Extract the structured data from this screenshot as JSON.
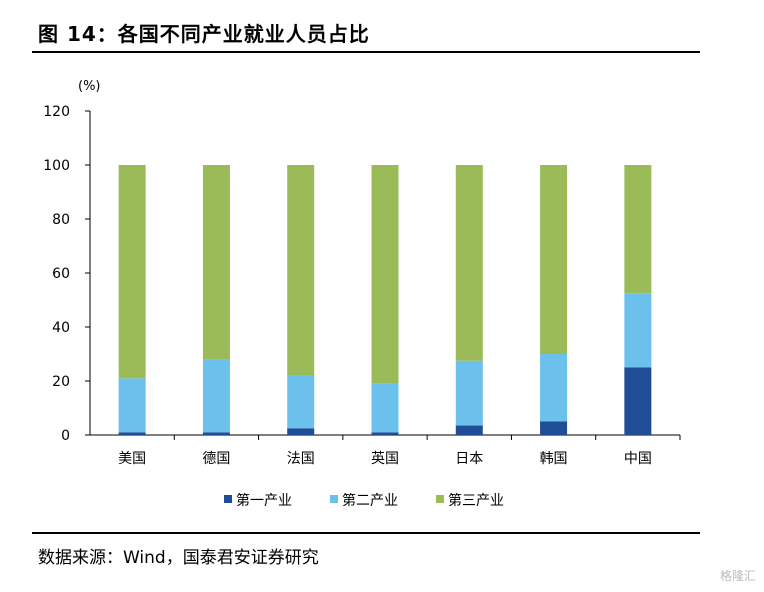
{
  "title": "图 14：各国不同产业就业人员占比",
  "source": "数据来源：Wind，国泰君安证券研究",
  "watermark": "格隆汇",
  "chart_data": {
    "type": "bar",
    "stacked": true,
    "unit_label": "(%)",
    "categories": [
      "美国",
      "德国",
      "法国",
      "英国",
      "日本",
      "韩国",
      "中国"
    ],
    "series": [
      {
        "name": "第一产业",
        "color": "#1F4E96",
        "values": [
          1,
          1,
          2.5,
          1,
          3.5,
          5,
          25
        ]
      },
      {
        "name": "第二产业",
        "color": "#6CC1EC",
        "values": [
          20,
          27,
          19.5,
          18,
          24,
          25,
          27.5
        ]
      },
      {
        "name": "第三产业",
        "color": "#9BBB59",
        "values": [
          79,
          72,
          78,
          81,
          72.5,
          70,
          47.5
        ]
      }
    ],
    "ylim": [
      0,
      120
    ],
    "yticks": [
      0,
      20,
      40,
      60,
      80,
      100,
      120
    ],
    "legend_position": "bottom",
    "grid": false
  }
}
